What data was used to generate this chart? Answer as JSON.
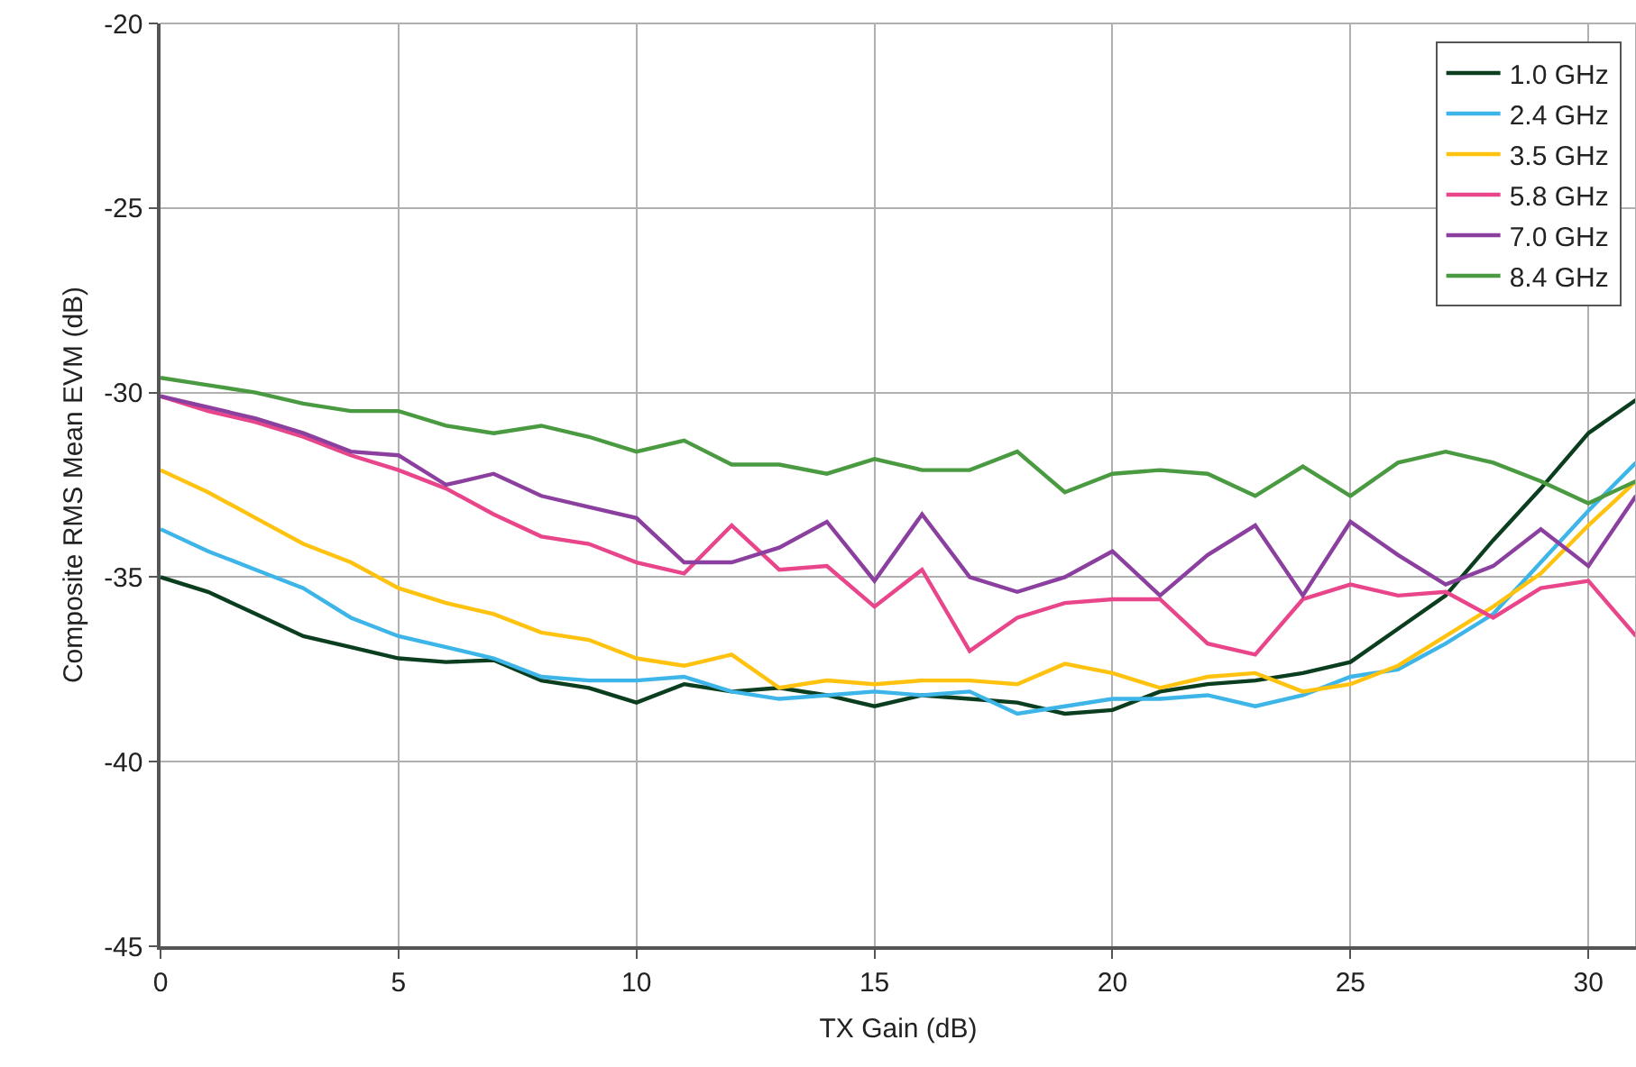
{
  "chart_data": {
    "type": "line",
    "xlabel": "TX Gain (dB)",
    "ylabel": "Composite RMS Mean EVM (dB)",
    "x": [
      0,
      1,
      2,
      3,
      4,
      5,
      6,
      7,
      8,
      9,
      10,
      11,
      12,
      13,
      14,
      15,
      16,
      17,
      18,
      19,
      20,
      21,
      22,
      23,
      24,
      25,
      26,
      27,
      28,
      29,
      30,
      31
    ],
    "series": [
      {
        "name": "1.0 GHz",
        "color": "#0b3d1f",
        "values": [
          -35.0,
          -35.4,
          -36.0,
          -36.6,
          -36.9,
          -37.2,
          -37.3,
          -37.25,
          -37.8,
          -38.0,
          -38.4,
          -37.9,
          -38.1,
          -38.0,
          -38.2,
          -38.5,
          -38.2,
          -38.3,
          -38.4,
          -38.7,
          -38.6,
          -38.1,
          -37.9,
          -37.8,
          -37.6,
          -37.3,
          -36.4,
          -35.5,
          -34.0,
          -32.6,
          -31.1,
          -30.2
        ]
      },
      {
        "name": "2.4 GHz",
        "color": "#3db5e8",
        "values": [
          -33.7,
          -34.3,
          -34.8,
          -35.3,
          -36.1,
          -36.6,
          -36.9,
          -37.2,
          -37.7,
          -37.8,
          -37.8,
          -37.7,
          -38.1,
          -38.3,
          -38.2,
          -38.1,
          -38.2,
          -38.1,
          -38.7,
          -38.5,
          -38.3,
          -38.3,
          -38.2,
          -38.5,
          -38.2,
          -37.7,
          -37.5,
          -36.8,
          -36.0,
          -34.6,
          -33.2,
          -31.9
        ]
      },
      {
        "name": "3.5 GHz",
        "color": "#ffc20e",
        "values": [
          -32.1,
          -32.7,
          -33.4,
          -34.1,
          -34.6,
          -35.3,
          -35.7,
          -36.0,
          -36.5,
          -36.7,
          -37.2,
          -37.4,
          -37.1,
          -38.0,
          -37.8,
          -37.9,
          -37.8,
          -37.8,
          -37.9,
          -37.35,
          -37.6,
          -38.0,
          -37.7,
          -37.6,
          -38.1,
          -37.9,
          -37.4,
          -36.6,
          -35.8,
          -34.9,
          -33.6,
          -32.4
        ]
      },
      {
        "name": "5.8 GHz",
        "color": "#e8458b",
        "values": [
          -30.1,
          -30.5,
          -30.8,
          -31.2,
          -31.7,
          -32.1,
          -32.6,
          -33.3,
          -33.9,
          -34.1,
          -34.6,
          -34.9,
          -33.6,
          -34.8,
          -34.7,
          -35.8,
          -34.8,
          -37.0,
          -36.1,
          -35.7,
          -35.6,
          -35.6,
          -36.8,
          -37.1,
          -35.6,
          -35.2,
          -35.5,
          -35.4,
          -36.1,
          -35.3,
          -35.1,
          -36.6
        ]
      },
      {
        "name": "7.0 GHz",
        "color": "#8b3f9e",
        "values": [
          -30.1,
          -30.4,
          -30.7,
          -31.1,
          -31.6,
          -31.7,
          -32.5,
          -32.2,
          -32.8,
          -33.1,
          -33.4,
          -34.6,
          -34.6,
          -34.2,
          -33.5,
          -35.1,
          -33.3,
          -35.0,
          -35.4,
          -35.0,
          -34.3,
          -35.5,
          -34.4,
          -33.6,
          -35.5,
          -33.5,
          -34.4,
          -35.2,
          -34.7,
          -33.7,
          -34.7,
          -32.8
        ]
      },
      {
        "name": "8.4 GHz",
        "color": "#4a9a41",
        "values": [
          -29.6,
          -29.8,
          -30.0,
          -30.3,
          -30.5,
          -30.5,
          -30.9,
          -31.1,
          -30.9,
          -31.2,
          -31.6,
          -31.3,
          -31.95,
          -31.95,
          -32.2,
          -31.8,
          -32.1,
          -32.1,
          -31.6,
          -32.7,
          -32.2,
          -32.1,
          -32.2,
          -32.8,
          -32.0,
          -32.8,
          -31.9,
          -31.6,
          -31.9,
          -32.4,
          -33.0,
          -32.4
        ]
      }
    ],
    "xlim": [
      0,
      31
    ],
    "xticks": [
      0,
      5,
      10,
      15,
      20,
      25,
      30
    ],
    "ylim": [
      -45,
      -20
    ],
    "yticks": [
      -45,
      -40,
      -35,
      -30,
      -25,
      -20
    ],
    "grid": true,
    "legend": "top right",
    "marker": "none",
    "line_style": "solid"
  }
}
